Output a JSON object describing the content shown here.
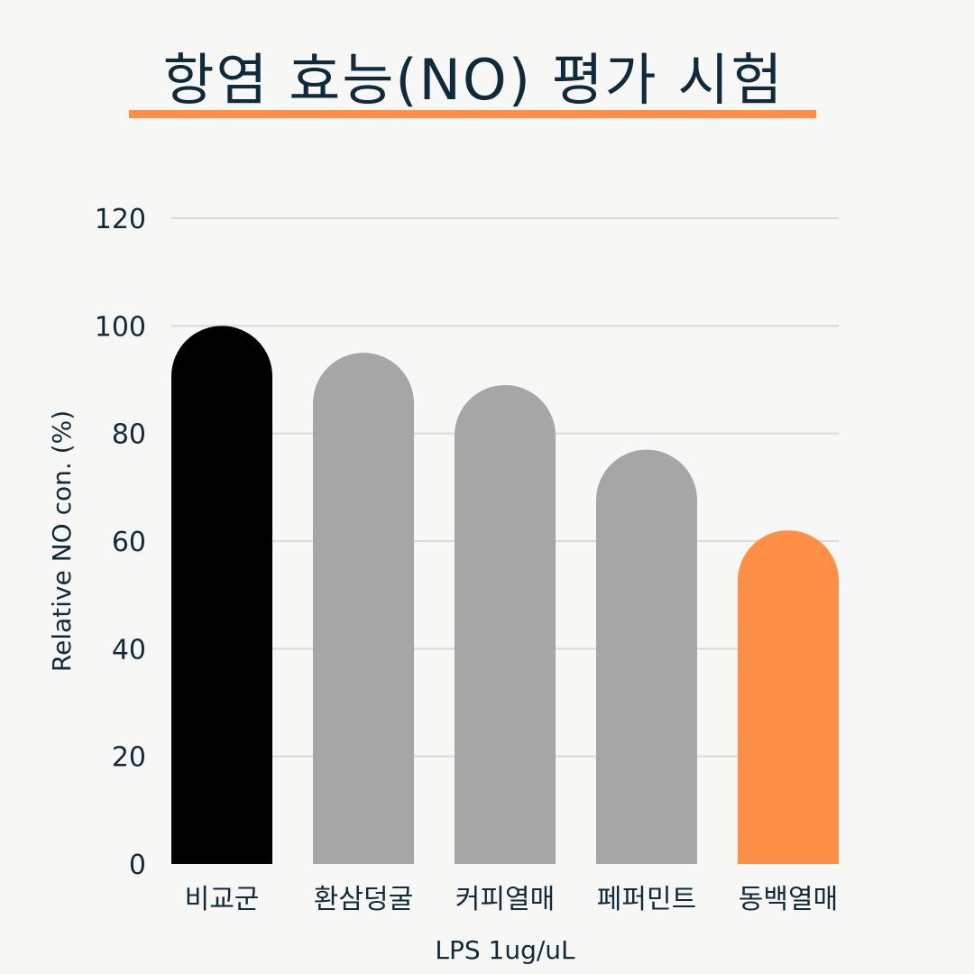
{
  "chart_data": {
    "type": "bar",
    "title": "항염 효능(NO) 평가 시험",
    "categories": [
      "비교군",
      "환삼덩굴",
      "커피열매",
      "페퍼민트",
      "동백열매"
    ],
    "values": [
      100,
      95,
      89,
      77,
      62
    ],
    "xlabel": "LPS 1ug/uL",
    "ylabel": "Relative NO con. (%)",
    "ylim": [
      0,
      120
    ],
    "yticks": [
      0,
      20,
      40,
      60,
      80,
      100,
      120
    ],
    "grid": true,
    "bar_colors": [
      "#000000",
      "#a6a6a6",
      "#a6a6a6",
      "#a6a6a6",
      "#ff8f47"
    ],
    "bar_shape": "rounded-top"
  },
  "colors": {
    "background": "#f7f7f5",
    "text": "#0f2a3a",
    "accent": "#ff8f47",
    "gridline": "#d9d9d9"
  }
}
